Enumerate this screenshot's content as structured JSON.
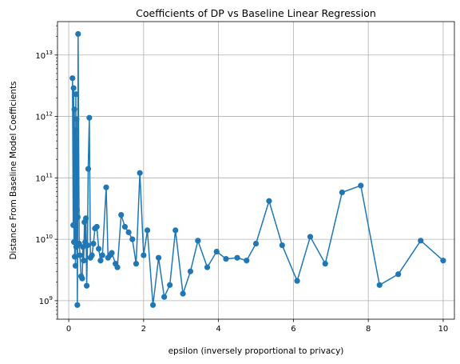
{
  "chart_data": {
    "type": "line",
    "title": "Coefficients of DP vs Baseline Linear Regression",
    "xlabel": "epsilon (inversely proportional to privacy)",
    "ylabel": "Distance From Baseline Model Coefficients",
    "xlim": [
      -0.3,
      10.3
    ],
    "ylim": [
      500000000,
      35000000000000
    ],
    "yscale": "log",
    "grid": true,
    "x_ticks": [
      0,
      2,
      4,
      6,
      8,
      10
    ],
    "y_ticks": [
      {
        "value": 1000000000,
        "base": "10",
        "exp": "9"
      },
      {
        "value": 10000000000,
        "base": "10",
        "exp": "10"
      },
      {
        "value": 100000000000,
        "base": "10",
        "exp": "11"
      },
      {
        "value": 1000000000000,
        "base": "10",
        "exp": "12"
      },
      {
        "value": 10000000000000,
        "base": "10",
        "exp": "13"
      }
    ],
    "series": [
      {
        "color": "#1f77b4",
        "points": [
          [
            0.1,
            4200000000000.0
          ],
          [
            0.12,
            17000000000.0
          ],
          [
            0.13,
            2900000000000.0
          ],
          [
            0.14,
            9000000000.0
          ],
          [
            0.15,
            1300000000000.0
          ],
          [
            0.16,
            5200000000.0
          ],
          [
            0.17,
            600000000000.0
          ],
          [
            0.18,
            3700000000.0
          ],
          [
            0.19,
            2300000000000.0
          ],
          [
            0.2,
            7500000000.0
          ],
          [
            0.21,
            900000000000.0
          ],
          [
            0.22,
            30000000000.0
          ],
          [
            0.23,
            850000000.0
          ],
          [
            0.24,
            23000000000.0
          ],
          [
            0.25,
            22000000000000.0
          ],
          [
            0.28,
            8500000000.0
          ],
          [
            0.3,
            5500000000.0
          ],
          [
            0.33,
            2500000000.0
          ],
          [
            0.36,
            2300000000.0
          ],
          [
            0.38,
            7500000000.0
          ],
          [
            0.4,
            4500000000.0
          ],
          [
            0.42,
            19000000000.0
          ],
          [
            0.44,
            9000000000.0
          ],
          [
            0.46,
            22000000000.0
          ],
          [
            0.48,
            1750000000.0
          ],
          [
            0.5,
            8000000000.0
          ],
          [
            0.52,
            140000000000.0
          ],
          [
            0.55,
            950000000000.0
          ],
          [
            0.58,
            5000000000.0
          ],
          [
            0.62,
            5500000000.0
          ],
          [
            0.66,
            8500000000.0
          ],
          [
            0.7,
            15000000000.0
          ],
          [
            0.75,
            16000000000.0
          ],
          [
            0.8,
            7000000000.0
          ],
          [
            0.85,
            4500000000.0
          ],
          [
            0.9,
            5500000000.0
          ],
          [
            1.0,
            70000000000.0
          ],
          [
            1.05,
            5000000000.0
          ],
          [
            1.1,
            5500000000.0
          ],
          [
            1.15,
            6000000000.0
          ],
          [
            1.25,
            4000000000.0
          ],
          [
            1.3,
            3500000000.0
          ],
          [
            1.4,
            25000000000.0
          ],
          [
            1.5,
            16000000000.0
          ],
          [
            1.6,
            13000000000.0
          ],
          [
            1.7,
            10000000000.0
          ],
          [
            1.8,
            4000000000.0
          ],
          [
            1.9,
            120000000000.0
          ],
          [
            2.0,
            5500000000.0
          ],
          [
            2.1,
            14000000000.0
          ],
          [
            2.25,
            850000000.0
          ],
          [
            2.4,
            5000000000.0
          ],
          [
            2.55,
            1150000000.0
          ],
          [
            2.7,
            1800000000.0
          ],
          [
            2.85,
            14000000000.0
          ],
          [
            3.05,
            1300000000.0
          ],
          [
            3.25,
            3000000000.0
          ],
          [
            3.45,
            9500000000.0
          ],
          [
            3.7,
            3500000000.0
          ],
          [
            3.95,
            6300000000.0
          ],
          [
            4.2,
            4800000000.0
          ],
          [
            4.5,
            5000000000.0
          ],
          [
            4.75,
            4500000000.0
          ],
          [
            5.0,
            8500000000.0
          ],
          [
            5.35,
            42000000000.0
          ],
          [
            5.7,
            8000000000.0
          ],
          [
            6.1,
            2100000000.0
          ],
          [
            6.45,
            11000000000.0
          ],
          [
            6.85,
            4000000000.0
          ],
          [
            7.3,
            58000000000.0
          ],
          [
            7.8,
            75000000000.0
          ],
          [
            8.3,
            1800000000.0
          ],
          [
            8.8,
            2700000000.0
          ],
          [
            9.4,
            9500000000.0
          ],
          [
            10.0,
            4500000000.0
          ]
        ]
      }
    ]
  }
}
